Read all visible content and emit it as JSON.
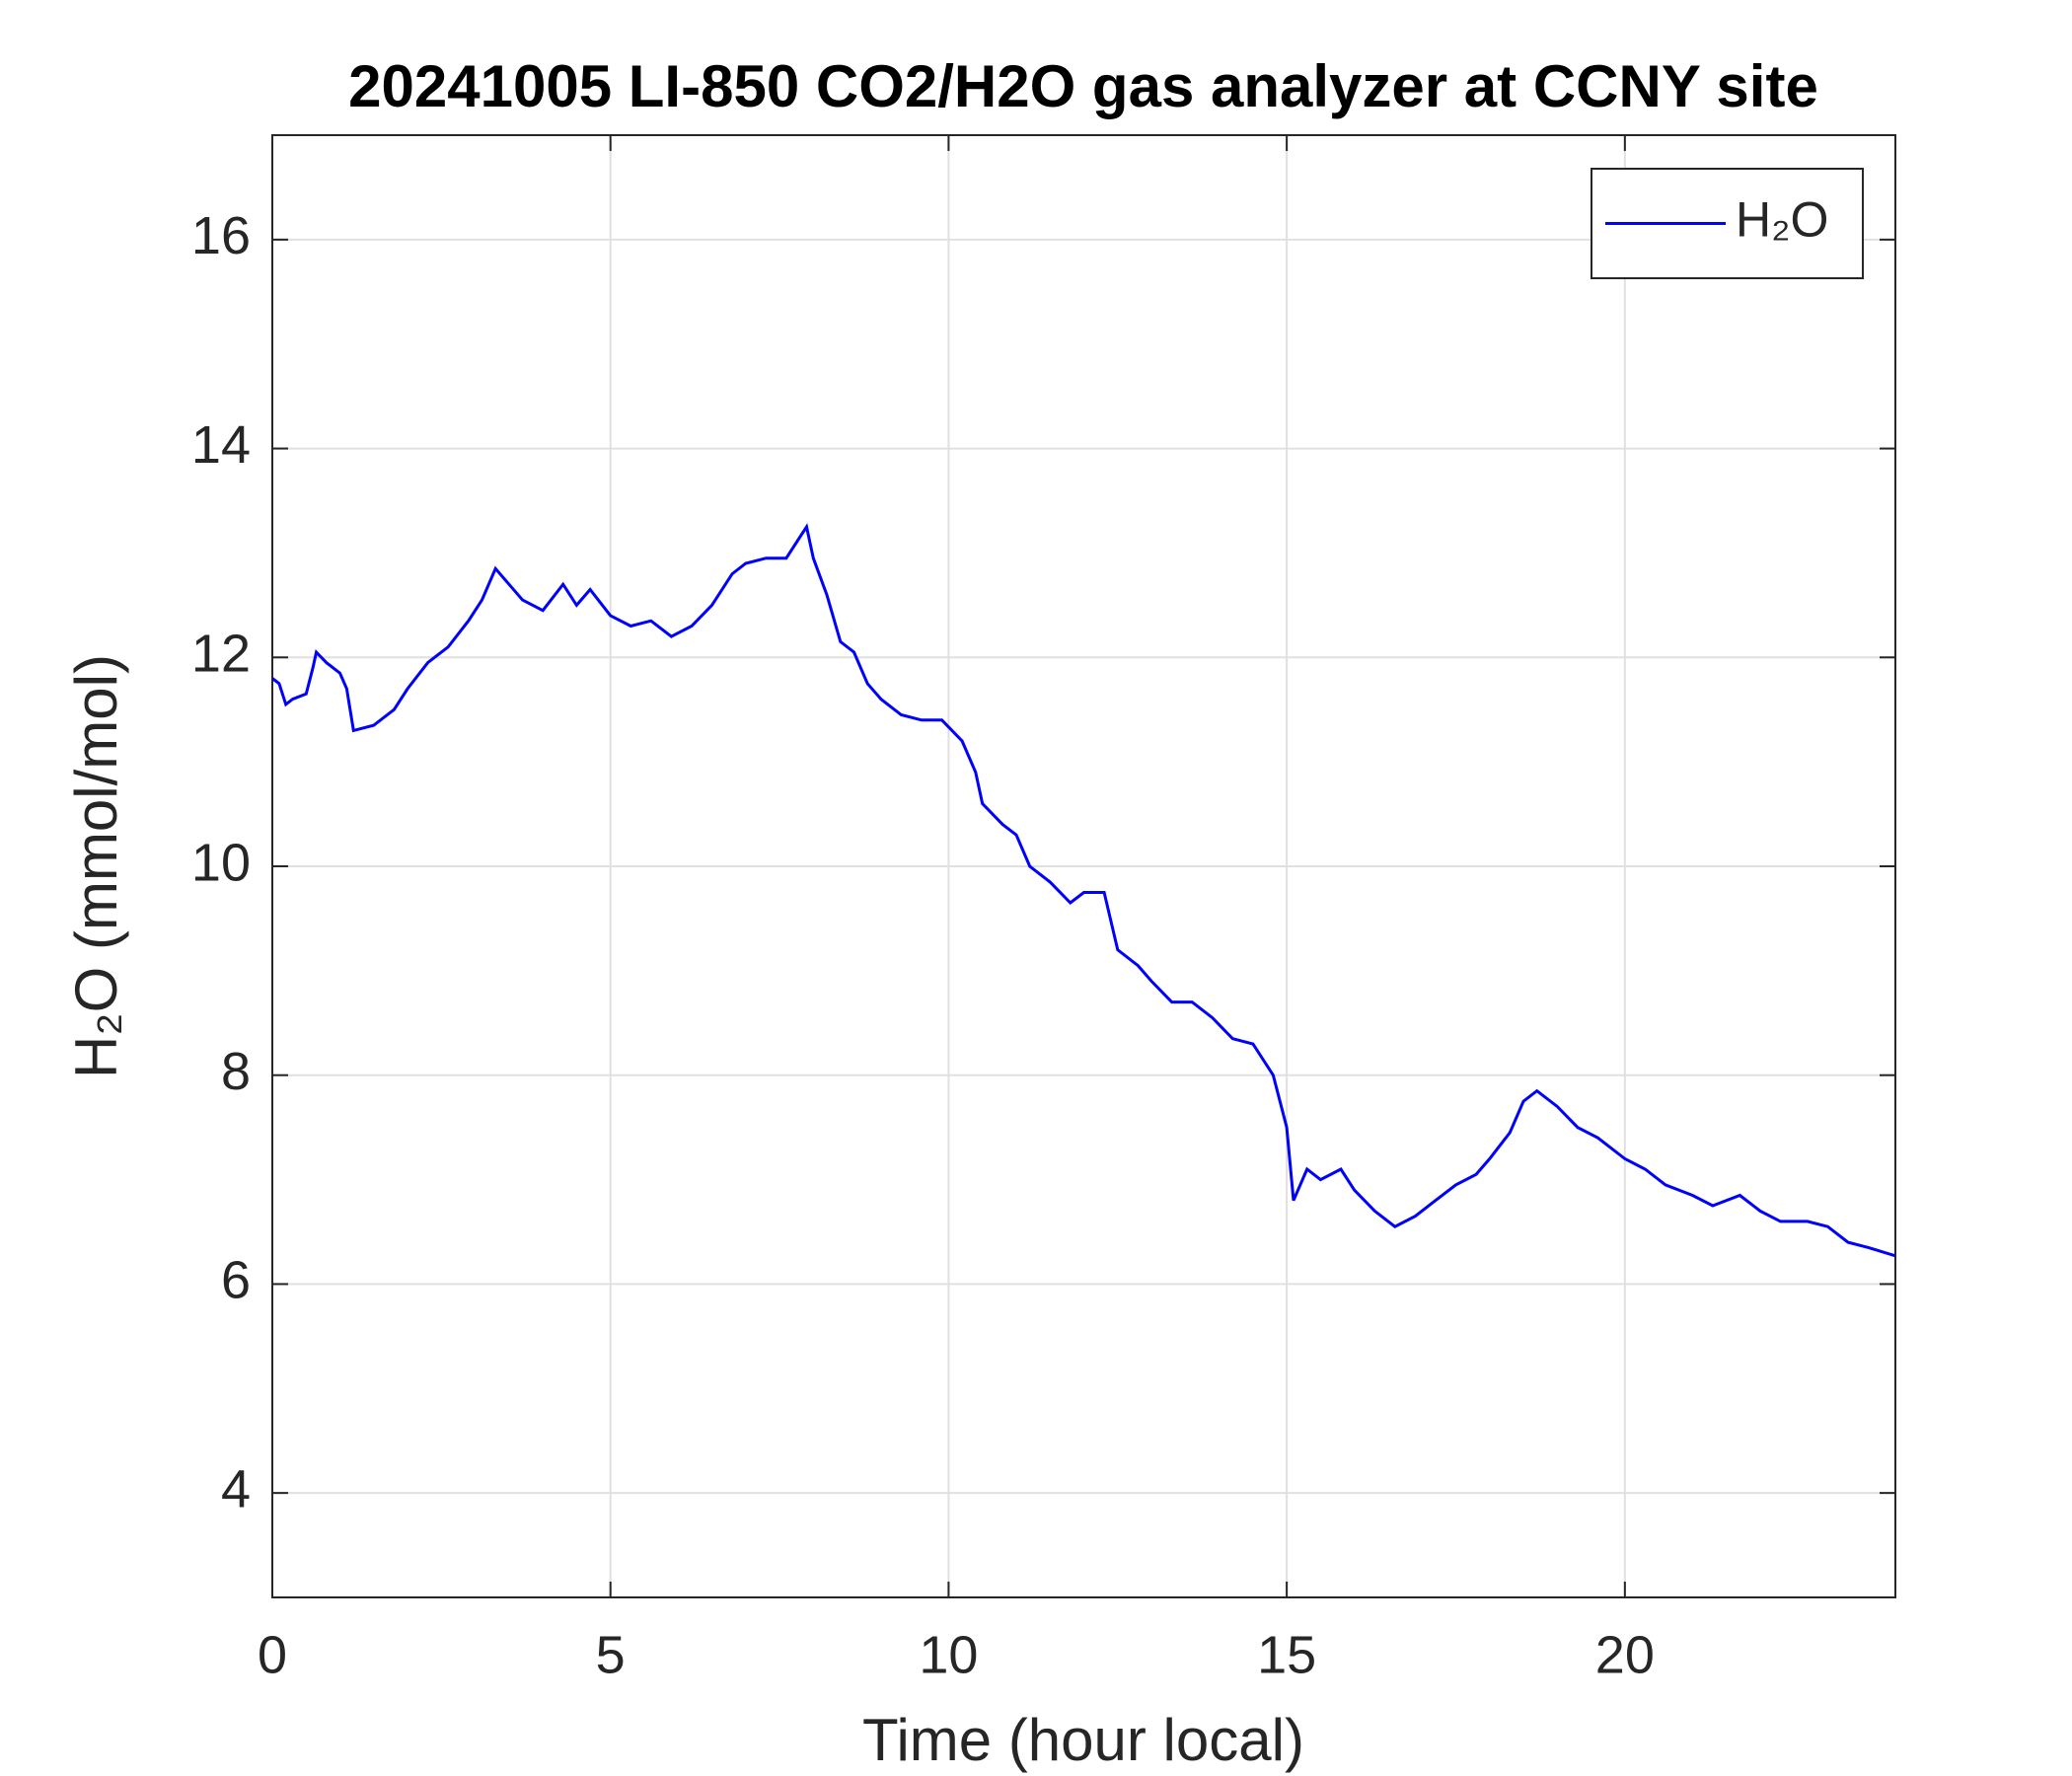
{
  "chart_data": {
    "type": "line",
    "title": "20241005 LI-850 CO2/H2O gas analyzer at CCNY site",
    "xlabel": "Time (hour local)",
    "ylabel": "H₂O (mmol/mol)",
    "x": [
      0,
      0.1,
      0.2,
      0.3,
      0.5,
      0.6,
      0.65,
      0.8,
      1.0,
      1.1,
      1.2,
      1.5,
      1.8,
      2.0,
      2.3,
      2.6,
      2.9,
      3.1,
      3.3,
      3.5,
      3.7,
      4.0,
      4.3,
      4.5,
      4.7,
      5.0,
      5.3,
      5.6,
      5.9,
      6.2,
      6.5,
      6.8,
      7.0,
      7.3,
      7.6,
      7.8,
      7.9,
      8.0,
      8.2,
      8.4,
      8.6,
      8.8,
      9.0,
      9.3,
      9.6,
      9.9,
      10.2,
      10.4,
      10.5,
      10.8,
      11.0,
      11.2,
      11.5,
      11.8,
      12.0,
      12.3,
      12.5,
      12.8,
      13.0,
      13.3,
      13.6,
      13.9,
      14.2,
      14.5,
      14.8,
      15.0,
      15.1,
      15.3,
      15.5,
      15.8,
      16.0,
      16.3,
      16.6,
      16.9,
      17.2,
      17.5,
      17.8,
      18.0,
      18.3,
      18.5,
      18.7,
      19.0,
      19.3,
      19.6,
      20.0,
      20.3,
      20.6,
      21.0,
      21.3,
      21.7,
      22.0,
      22.3,
      22.7,
      23.0,
      23.3,
      23.6,
      24.0
    ],
    "series": [
      {
        "name": "H₂O",
        "color": "#0000ff",
        "values": [
          11.8,
          11.75,
          11.55,
          11.6,
          11.65,
          11.9,
          12.05,
          11.95,
          11.85,
          11.7,
          11.3,
          11.35,
          11.5,
          11.7,
          11.95,
          12.1,
          12.35,
          12.55,
          12.85,
          12.7,
          12.55,
          12.45,
          12.7,
          12.5,
          12.65,
          12.4,
          12.3,
          12.35,
          12.2,
          12.3,
          12.5,
          12.8,
          12.9,
          12.95,
          12.95,
          13.15,
          13.25,
          12.95,
          12.6,
          12.15,
          12.05,
          11.75,
          11.6,
          11.45,
          11.4,
          11.4,
          11.2,
          10.9,
          10.6,
          10.4,
          10.3,
          10.0,
          9.85,
          9.65,
          9.75,
          9.75,
          9.2,
          9.05,
          8.9,
          8.7,
          8.7,
          8.55,
          8.35,
          8.3,
          8.0,
          7.5,
          6.8,
          7.1,
          7.0,
          7.1,
          6.9,
          6.7,
          6.55,
          6.65,
          6.8,
          6.95,
          7.05,
          7.2,
          7.45,
          7.75,
          7.85,
          7.7,
          7.5,
          7.4,
          7.2,
          7.1,
          6.95,
          6.85,
          6.75,
          6.85,
          6.7,
          6.6,
          6.6,
          6.55,
          6.4,
          6.35,
          6.27
        ]
      }
    ],
    "xlim": [
      0,
      24
    ],
    "ylim": [
      3,
      17
    ],
    "xticks": [
      0,
      5,
      10,
      15,
      20
    ],
    "yticks": [
      4,
      6,
      8,
      10,
      12,
      14,
      16
    ],
    "grid": true,
    "legend": "northeast"
  }
}
